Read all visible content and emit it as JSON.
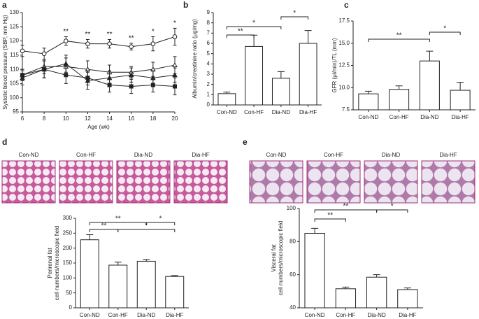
{
  "chart_data": [
    {
      "type": "line",
      "panel_label": "a",
      "ylabel": [
        "Systolic blood pressure (SBP, mm Hg)"
      ],
      "xlabel": "Age (wk)",
      "x": [
        6,
        8,
        10,
        12,
        14,
        16,
        18,
        20
      ],
      "xlim": [
        6,
        20
      ],
      "xticks": [
        6,
        8,
        10,
        12,
        14,
        16,
        18,
        20
      ],
      "ylim": [
        95,
        130
      ],
      "yticks": [
        95,
        100,
        105,
        110,
        115,
        120,
        125,
        130
      ],
      "series": [
        {
          "marker": "open-circle",
          "values": [
            116.5,
            115.5,
            120,
            119,
            119,
            118,
            119,
            121.5
          ],
          "errors": [
            2,
            2,
            1.5,
            1.5,
            1.5,
            1.2,
            2.5,
            3
          ]
        },
        {
          "marker": "open-triangle",
          "values": [
            108,
            111,
            111,
            110,
            109,
            109,
            110,
            111.5
          ],
          "errors": [
            2,
            2.5,
            3,
            3,
            2.5,
            2,
            2.5,
            3
          ]
        },
        {
          "marker": "filled-square",
          "values": [
            108,
            110,
            108,
            107,
            104.5,
            104,
            104.5,
            104
          ],
          "errors": [
            2,
            3,
            3,
            2.5,
            2.5,
            2.5,
            2.5,
            3
          ]
        },
        {
          "marker": "filled-triangle",
          "values": [
            107,
            110,
            112,
            106,
            107,
            108,
            107,
            108
          ],
          "errors": [
            2.5,
            3,
            3,
            3,
            2.5,
            2.5,
            2.5,
            2.5
          ]
        }
      ],
      "annotations": [
        {
          "x": 10,
          "text": "**"
        },
        {
          "x": 12,
          "text": "**"
        },
        {
          "x": 14,
          "text": "**"
        },
        {
          "x": 16,
          "text": "**"
        },
        {
          "x": 18,
          "text": "*"
        },
        {
          "x": 20,
          "text": "*"
        }
      ]
    },
    {
      "type": "bar",
      "panel_label": "b",
      "ylabel": [
        "Albumin/creatinine ratio (μg/mg)"
      ],
      "categories": [
        "Con-ND",
        "Con-HF",
        "Dia-ND",
        "Dia-HF"
      ],
      "values": [
        1.1,
        5.7,
        2.6,
        6.0
      ],
      "errors": [
        0.15,
        1.1,
        0.65,
        1.25
      ],
      "ylim": [
        0,
        9
      ],
      "yticks": [
        0,
        1,
        2,
        3,
        4,
        5,
        6,
        7,
        8,
        9
      ],
      "annotations": [
        "*",
        "**",
        "*"
      ]
    },
    {
      "type": "bar",
      "panel_label": "c",
      "ylabel": [
        "GFR (μl/min)/TL (mm)"
      ],
      "categories": [
        "Con-ND",
        "Con-HF",
        "Dia-ND",
        "Dia-HF"
      ],
      "values": [
        9.3,
        9.8,
        13.0,
        9.7
      ],
      "errors": [
        0.3,
        0.4,
        1.1,
        0.9
      ],
      "ylim": [
        7.5,
        17.5
      ],
      "yticks": [
        7.5,
        {
          "value": 10,
          "label": "10.0"
        },
        12.5,
        {
          "value": 15,
          "label": "15.0"
        },
        17.5
      ],
      "annotations": [
        "**",
        "*"
      ]
    },
    {
      "type": "bar",
      "panel_label": "d",
      "ylabel": [
        "Perirenal fat",
        "cell numbers/microscopic field"
      ],
      "image_labels": [
        "Con-ND",
        "Con-HF",
        "Dia-ND",
        "Dia-HF"
      ],
      "categories": [
        "Con-ND",
        "Con-HF",
        "Dia-ND",
        "Dia-HF"
      ],
      "values": [
        228,
        143,
        156,
        105
      ],
      "errors": [
        17,
        10,
        6,
        3
      ],
      "ylim": [
        0,
        300
      ],
      "yticks": [
        0,
        50,
        100,
        150,
        200,
        250,
        300
      ],
      "annotations": [
        "**",
        "*",
        "**",
        "*"
      ]
    },
    {
      "type": "bar",
      "panel_label": "e",
      "ylabel": [
        "Visceral fat",
        "cell numbers/microscopic field"
      ],
      "image_labels": [
        "Con-ND",
        "Con-HF",
        "Dia-ND",
        "Dia-HF"
      ],
      "categories": [
        "Con-ND",
        "Con-HF",
        "Dia-ND",
        "Dia-HF"
      ],
      "values": [
        85,
        51.5,
        58.5,
        51
      ],
      "errors": [
        3,
        1,
        1.5,
        1
      ],
      "ylim": [
        40,
        100
      ],
      "yticks": [
        40,
        60,
        80,
        100
      ],
      "annotations": [
        "**",
        "*",
        "**"
      ]
    }
  ]
}
